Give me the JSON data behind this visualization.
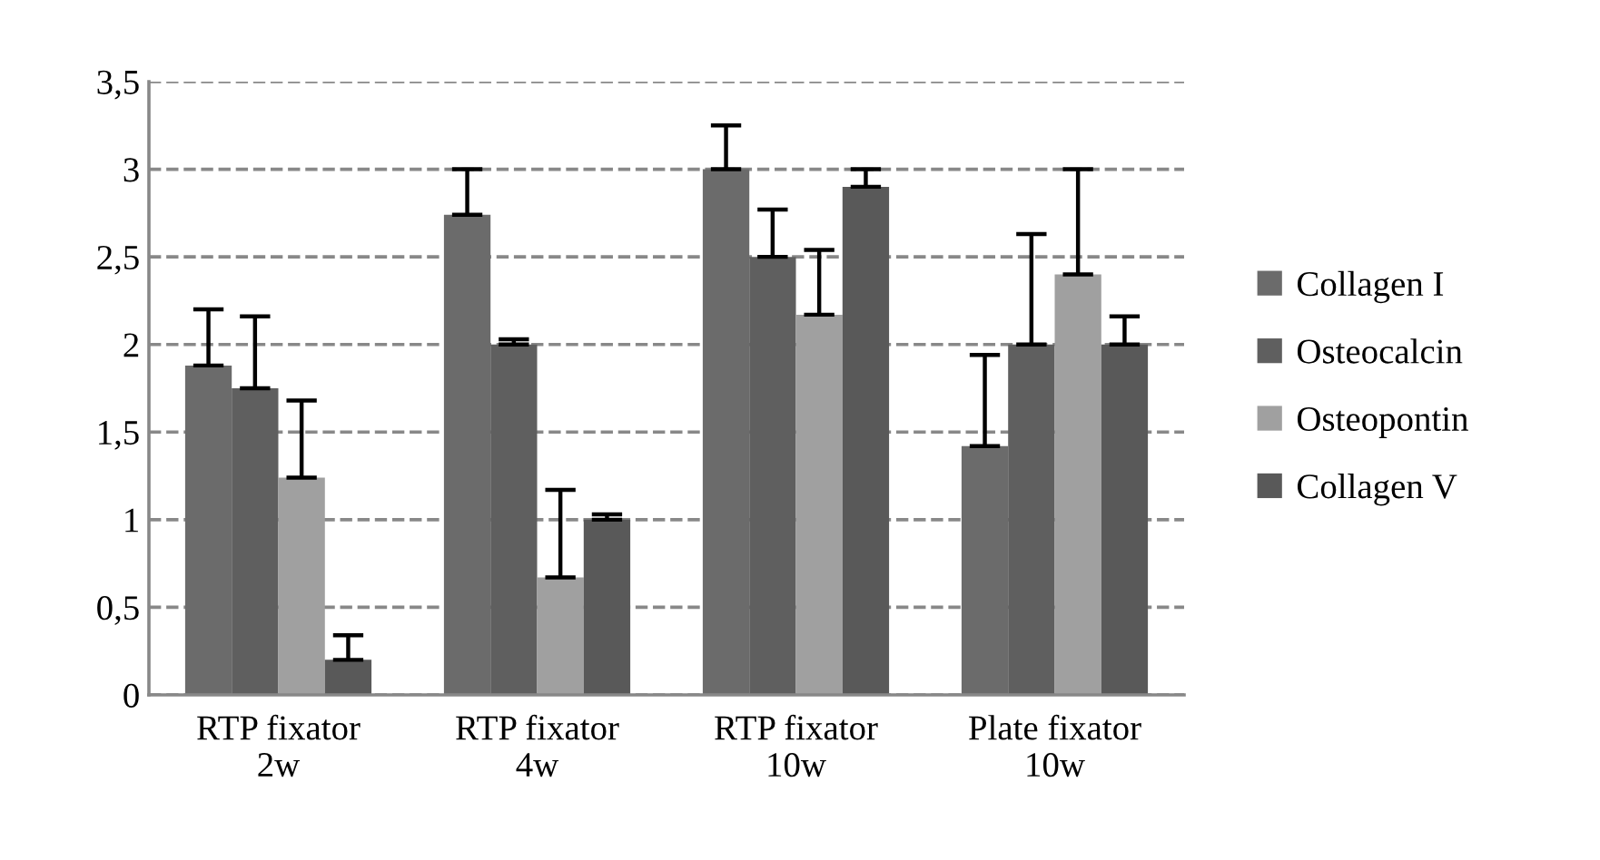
{
  "chart_data": {
    "type": "bar",
    "categories": [
      "RTP fixator\n2w",
      "RTP fixator\n4w",
      "RTP fixator\n10w",
      "Plate fixator\n10w"
    ],
    "series": [
      {
        "name": "Collagen I",
        "color": "#6b6b6b",
        "values": [
          1.88,
          2.74,
          3.0,
          1.42
        ],
        "errors": [
          [
            1.88,
            2.2
          ],
          [
            2.74,
            3.0
          ],
          [
            3.0,
            3.25
          ],
          [
            1.42,
            1.94
          ]
        ]
      },
      {
        "name": "Osteocalcin",
        "color": "#5f5f5f",
        "values": [
          1.75,
          2.0,
          2.5,
          2.0
        ],
        "errors": [
          [
            1.75,
            2.16
          ],
          [
            2.0,
            2.03
          ],
          [
            2.5,
            2.77
          ],
          [
            2.0,
            2.63
          ]
        ]
      },
      {
        "name": "Osteopontin",
        "color": "#a0a0a0",
        "values": [
          1.24,
          0.67,
          2.17,
          2.4
        ],
        "errors": [
          [
            1.24,
            1.68
          ],
          [
            0.67,
            1.17
          ],
          [
            2.17,
            2.54
          ],
          [
            2.4,
            3.0
          ]
        ]
      },
      {
        "name": "Collagen V",
        "color": "#595959",
        "values": [
          0.2,
          1.0,
          2.9,
          2.0
        ],
        "errors": [
          [
            0.2,
            0.34
          ],
          [
            1.0,
            1.03
          ],
          [
            2.9,
            3.0
          ],
          [
            2.0,
            2.16
          ]
        ]
      }
    ],
    "ylim": [
      0,
      3.5
    ],
    "yticks": [
      0,
      {
        "value": 0.5,
        "label": "0,5"
      },
      1,
      {
        "value": 1.5,
        "label": "1,5"
      },
      2,
      {
        "value": 2.5,
        "label": "2,5"
      },
      3,
      {
        "value": 3.5,
        "label": "3,5"
      }
    ],
    "grid": "y",
    "legend": "right"
  }
}
